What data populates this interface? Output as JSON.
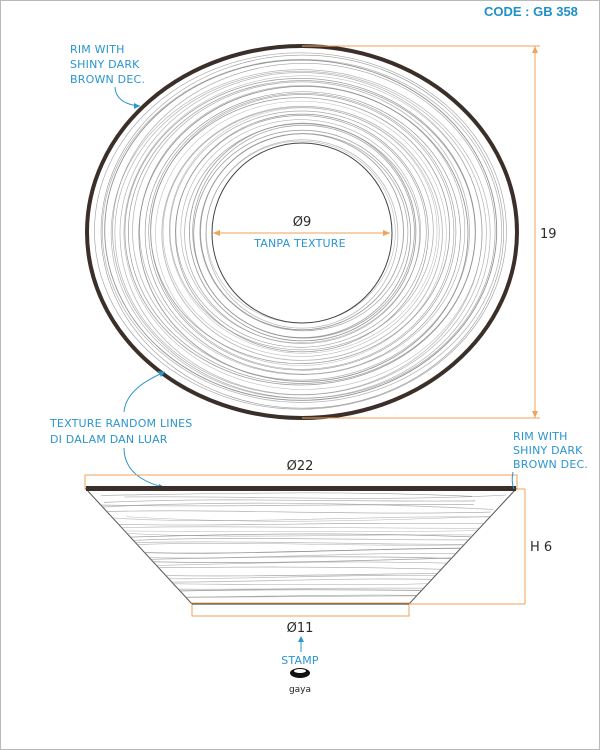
{
  "header": {
    "code": "CODE : GB 358"
  },
  "top_view": {
    "rim_note": [
      "RIM WITH",
      "SHINY DARK",
      "BROWN DEC."
    ],
    "inner_diameter": "Ø9",
    "inner_note": "TANPA TEXTURE",
    "height_label": "19",
    "texture_note": [
      "TEXTURE RANDOM LINES",
      "DI DALAM DAN LUAR"
    ]
  },
  "side_view": {
    "rim_note": [
      "RIM WITH",
      "SHINY DARK",
      "BROWN DEC."
    ],
    "top_diameter": "Ø22",
    "height_label": "H 6",
    "base_diameter": "Ø11"
  },
  "stamp": {
    "label": "STAMP",
    "brand": "gaya"
  },
  "colors": {
    "accent_text": "#2a95cf",
    "code_text": "#1e90c8",
    "dimension_line": "#f0a35a",
    "rim": "#3b2f2a",
    "sketch_line": "#8a8a8a"
  }
}
